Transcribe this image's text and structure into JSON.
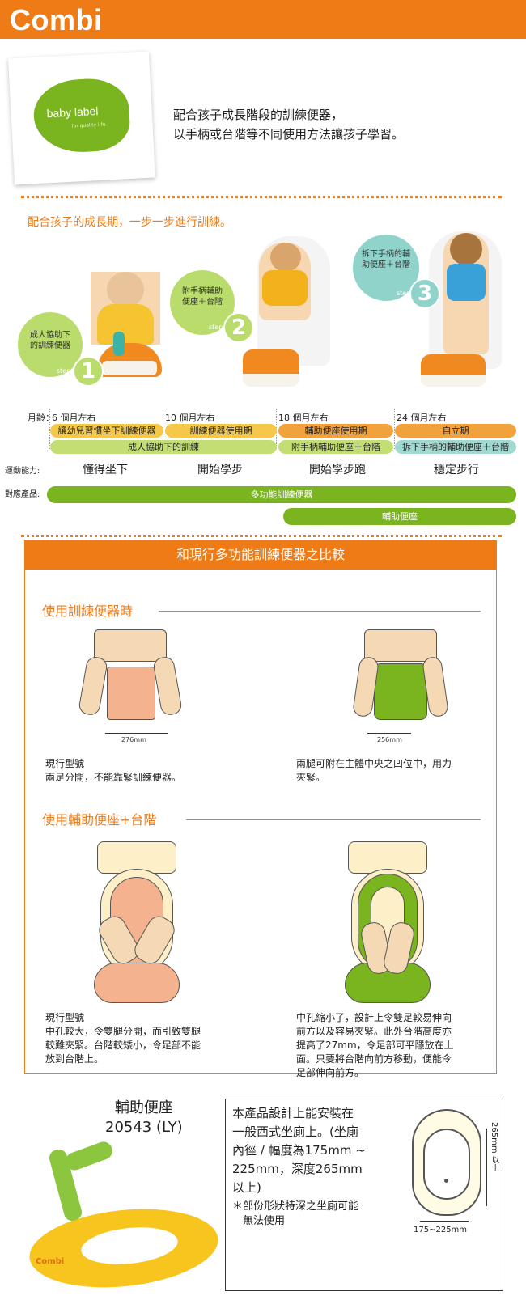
{
  "header": {
    "logo": "Combi",
    "bg_color": "#ef7b16"
  },
  "brand_card": {
    "title": "baby label",
    "tagline": "for quality life",
    "blob_color": "#7ab41e"
  },
  "intro": {
    "line1": "配合孩子成長階段的訓練便器，",
    "line2": "以手柄或台階等不同使用方法讓孩子學習。"
  },
  "growth": {
    "subtitle": "配合孩子的成長期，一步一步進行訓練。",
    "step_word": "step",
    "steps": [
      {
        "num": "1",
        "label": "成人協助下的訓練便器",
        "color": "#b9dc6c"
      },
      {
        "num": "2",
        "label": "附手柄輔助便座＋台階",
        "color": "#b9dc6c"
      },
      {
        "num": "3",
        "label": "拆下手柄的輔助便座＋台階",
        "color": "#8fd3cb"
      }
    ],
    "age_title": "月齡：",
    "ages": [
      "6 個月左右",
      "10 個月左右",
      "18 個月左右",
      "24 個月左右"
    ],
    "row1": [
      "讓幼兒習慣坐下訓練便器",
      "訓練便器使用期",
      "輔助便座使用期",
      "自立期"
    ],
    "row2": [
      "成人協助下的訓練",
      "附手柄輔助便座＋台階",
      "拆下手柄的輔助便座＋台階"
    ],
    "motor_title": "運動能力:",
    "motor": [
      "懂得坐下",
      "開始學步",
      "開始學步跑",
      "穩定步行"
    ],
    "product_title": "對應產品:",
    "products": [
      "多功能訓練便器",
      "輔助便座"
    ]
  },
  "compare": {
    "title": "和現行多功能訓練便器之比較",
    "sec1": {
      "title": "使用訓練便器時",
      "left_dim": "276mm",
      "right_dim": "256mm",
      "left_text": [
        "現行型號",
        "兩足分開，不能靠緊訓練便器。"
      ],
      "right_text": [
        "兩腿可附在主體中央之凹位中，用力",
        "夾緊。"
      ]
    },
    "sec2": {
      "title": "使用輔助便座+台階",
      "left_text": [
        "現行型號",
        "中孔較大，令雙腿分開，而引致雙腿",
        "較難夾緊。台階較矮小，令足部不能",
        "放到台階上。"
      ],
      "right_text": [
        "中孔縮小了，設計上令雙足較易伸向",
        "前方以及容易夾緊。此外台階高度亦",
        "提高了27mm，令足部可平隱放在上",
        "面。只要將台階向前方移動，便能令",
        "足部伸向前方。"
      ]
    }
  },
  "product": {
    "name": "輔助便座",
    "code": "20543 (LY)",
    "brand_mark": "Combi",
    "info": [
      "本產品設計上能安裝在",
      "一般西式坐廁上。(坐廁",
      "內徑 / 幅度為175mm ~",
      "225mm，深度265mm",
      "以上)"
    ],
    "note": [
      "＊部份形狀特深之坐廁可能",
      "　無法使用"
    ],
    "depth_label": "265mm 以上",
    "width_label": "175~225mm"
  }
}
